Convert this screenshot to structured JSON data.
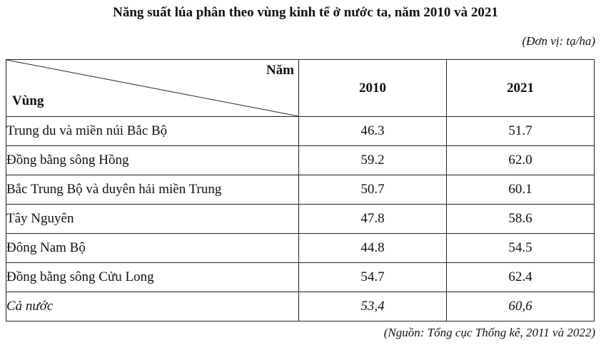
{
  "title": "Năng suất lúa phân theo vùng kinh tế ở nước ta, năm 2010 và 2021",
  "unit": "(Đơn vị: tạ/ha)",
  "table": {
    "corner_top": "Năm",
    "corner_bottom": "Vùng",
    "years": [
      "2010",
      "2021"
    ],
    "rows": [
      {
        "region": "Trung du và miền núi Bắc Bộ",
        "v2010": "46.3",
        "v2021": "51.7"
      },
      {
        "region": "Đồng bằng sông Hồng",
        "v2010": "59.2",
        "v2021": "62.0"
      },
      {
        "region": "Bắc Trung Bộ và duyên hải miền Trung",
        "v2010": "50.7",
        "v2021": "60.1"
      },
      {
        "region": "Tây Nguyên",
        "v2010": "47.8",
        "v2021": "58.6"
      },
      {
        "region": "Đông Nam Bộ",
        "v2010": "44.8",
        "v2021": "54.5"
      },
      {
        "region": "Đồng bằng sông Cửu Long",
        "v2010": "54.7",
        "v2021": "62.4"
      }
    ],
    "total": {
      "region": "Cả nước",
      "v2010": "53,4",
      "v2021": "60,6"
    }
  },
  "source": "(Nguồn: Tổng cục Thống kê, 2011 và 2022)"
}
